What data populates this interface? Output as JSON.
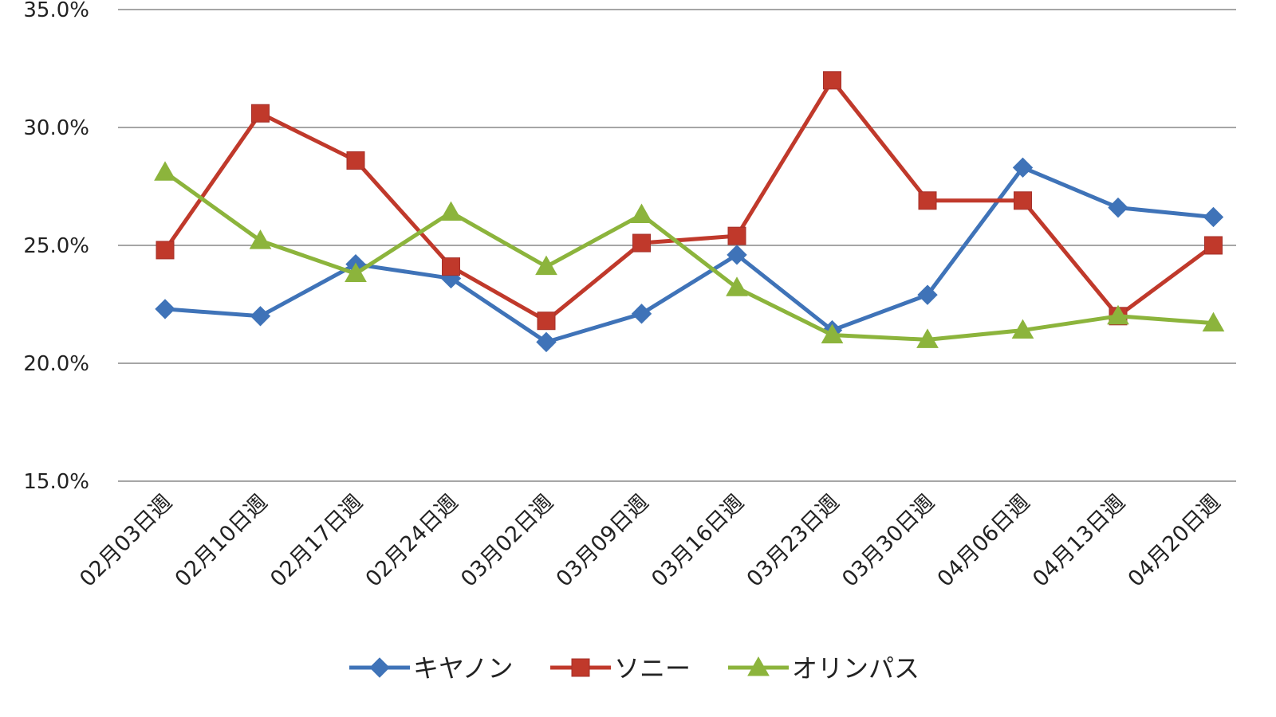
{
  "chart_data": {
    "type": "line",
    "title": "",
    "xlabel": "",
    "ylabel": "",
    "categories": [
      "02月03日週",
      "02月10日週",
      "02月17日週",
      "02月24日週",
      "03月02日週",
      "03月09日週",
      "03月16日週",
      "03月23日週",
      "03月30日週",
      "04月06日週",
      "04月13日週",
      "04月20日週"
    ],
    "ylim": [
      15,
      35
    ],
    "yticks": [
      15,
      20,
      25,
      30,
      35
    ],
    "ytick_labels": [
      "15.0%",
      "20.0%",
      "25.0%",
      "30.0%",
      "35.0%"
    ],
    "grid": true,
    "legend_position": "bottom",
    "series": [
      {
        "name": "キヤノン",
        "color": "#3f73b8",
        "marker": "diamond",
        "values": [
          22.3,
          22.0,
          24.2,
          23.6,
          20.9,
          22.1,
          24.6,
          21.4,
          22.9,
          28.3,
          26.6,
          26.2
        ]
      },
      {
        "name": "ソニー",
        "color": "#c0392b",
        "marker": "square",
        "values": [
          24.8,
          30.6,
          28.6,
          24.1,
          21.8,
          25.1,
          25.4,
          32.0,
          26.9,
          26.9,
          22.0,
          25.0
        ]
      },
      {
        "name": "オリンパス",
        "color": "#8cb43c",
        "marker": "triangle",
        "values": [
          28.1,
          25.2,
          23.8,
          26.4,
          24.1,
          26.3,
          23.2,
          21.2,
          21.0,
          21.4,
          22.0,
          21.7
        ]
      }
    ]
  }
}
